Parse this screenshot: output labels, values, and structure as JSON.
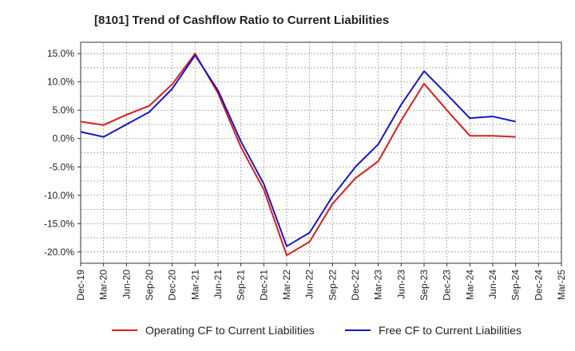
{
  "chart_data": {
    "type": "line",
    "title": "[8101]  Trend of Cashflow Ratio to Current Liabilities",
    "xlabel": "",
    "ylabel": "",
    "x": [
      "Dec-19",
      "Mar-20",
      "Jun-20",
      "Sep-20",
      "Dec-20",
      "Mar-21",
      "Jun-21",
      "Sep-21",
      "Dec-21",
      "Mar-22",
      "Jun-22",
      "Sep-22",
      "Dec-22",
      "Mar-23",
      "Jun-23",
      "Sep-23",
      "Dec-23",
      "Mar-24",
      "Jun-24",
      "Sep-24",
      "Dec-24",
      "Mar-25"
    ],
    "yticks": [
      "15.0%",
      "10.0%",
      "5.0%",
      "0.0%",
      "-5.0%",
      "-10.0%",
      "-15.0%",
      "-20.0%"
    ],
    "ytick_values": [
      15,
      10,
      5,
      0,
      -5,
      -10,
      -15,
      -20
    ],
    "ylim": [
      -22,
      17
    ],
    "grid": true,
    "legend_position": "bottom",
    "series": [
      {
        "name": "Operating CF to Current Liabilities",
        "color": "#dd1c1c",
        "values": [
          3.0,
          2.4,
          4.2,
          5.8,
          9.6,
          15.0,
          8.0,
          -1.5,
          -9.0,
          -20.6,
          -18.2,
          -11.5,
          -7.0,
          -4.0,
          3.2,
          9.7,
          5.0,
          0.5,
          0.5,
          0.3,
          null,
          null
        ]
      },
      {
        "name": "Free CF to Current Liabilities",
        "color": "#1515cc",
        "values": [
          1.2,
          0.3,
          2.5,
          4.7,
          8.8,
          14.7,
          8.5,
          -0.5,
          -8.0,
          -19.0,
          -16.6,
          -10.2,
          -5.0,
          -1.0,
          6.0,
          11.9,
          7.8,
          3.6,
          3.9,
          3.0,
          null,
          null
        ]
      }
    ]
  }
}
